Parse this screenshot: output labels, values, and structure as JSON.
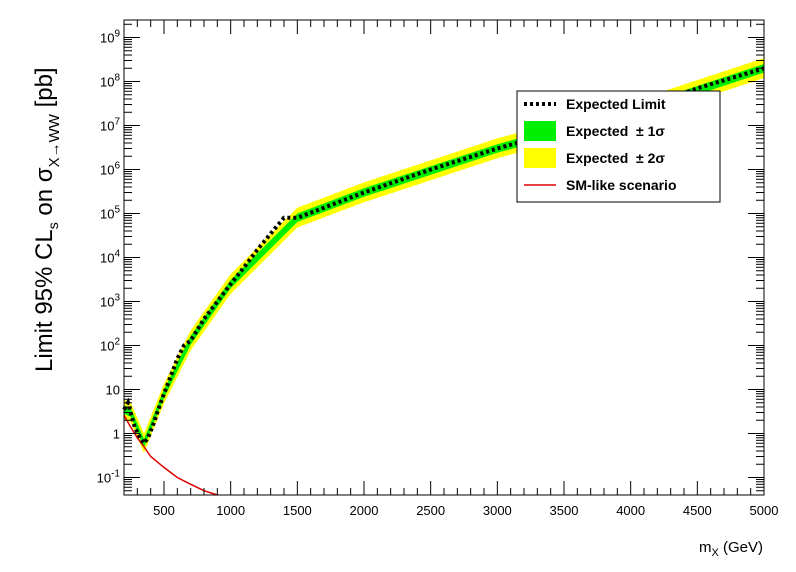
{
  "chart_data": {
    "type": "line",
    "ylabel": {
      "prefix": "Limit 95% CL",
      "prefix_sub": "s",
      "middle": " on σ",
      "sub": "X→WW",
      "suffix": " [pb]"
    },
    "xlabel": {
      "main": "m",
      "sub": "X",
      "suffix": " (GeV)"
    },
    "xlim": [
      200,
      5000
    ],
    "ylim": [
      0.04,
      2500000000
    ],
    "y_scale": "log",
    "grid": false,
    "legend_position": "top-right",
    "xtick_labels": [
      "500",
      "1000",
      "1500",
      "2000",
      "2500",
      "3000",
      "3500",
      "4000",
      "4500",
      "5000"
    ],
    "xtick_values": [
      500,
      1000,
      1500,
      2000,
      2500,
      3000,
      3500,
      4000,
      4500,
      5000
    ],
    "ytick_labels": [
      {
        "base": "10",
        "exp": "-1",
        "value": 0.1
      },
      {
        "base": "1",
        "exp": "",
        "value": 1
      },
      {
        "base": "10",
        "exp": "",
        "value": 10
      },
      {
        "base": "10",
        "exp": "2",
        "value": 100
      },
      {
        "base": "10",
        "exp": "3",
        "value": 1000
      },
      {
        "base": "10",
        "exp": "4",
        "value": 10000
      },
      {
        "base": "10",
        "exp": "5",
        "value": 100000
      },
      {
        "base": "10",
        "exp": "6",
        "value": 1000000
      },
      {
        "base": "10",
        "exp": "7",
        "value": 10000000
      },
      {
        "base": "10",
        "exp": "8",
        "value": 100000000
      },
      {
        "base": "10",
        "exp": "9",
        "value": 1000000000
      }
    ],
    "series": [
      {
        "name": "Expected Limit",
        "style": "dotted",
        "color": "#000000",
        "x": [
          200,
          230,
          250,
          280,
          320,
          350,
          380,
          420,
          450,
          500,
          550,
          600,
          650,
          700,
          800,
          900,
          1000,
          1100,
          1200,
          1300,
          1400,
          1500,
          2000,
          2500,
          3000,
          3500,
          4000,
          4500,
          5000
        ],
        "y": [
          3.5,
          5.0,
          3.0,
          1.4,
          0.8,
          0.6,
          0.8,
          1.6,
          3.0,
          8,
          20,
          50,
          100,
          130,
          400,
          1000,
          2500,
          6000,
          15000,
          35000,
          80000,
          80000,
          300000,
          1000000,
          3000000,
          8000000,
          20000000,
          70000000,
          200000000
        ]
      },
      {
        "name": "Expected  ± 1σ",
        "type": "band",
        "color": "#00ee00",
        "x": [
          200,
          250,
          350,
          500,
          700,
          1000,
          1500,
          2000,
          3000,
          4000,
          5000
        ],
        "low": [
          2.8,
          2.4,
          0.48,
          6.4,
          105,
          2000,
          64000,
          240000,
          2400000,
          16000000,
          160000000
        ],
        "high": [
          4.4,
          3.8,
          0.75,
          10,
          165,
          3100,
          100000,
          375000,
          3750000,
          25000000,
          250000000
        ]
      },
      {
        "name": "Expected  ± 2σ",
        "type": "band",
        "color": "#ffff00",
        "x": [
          200,
          250,
          350,
          500,
          700,
          1000,
          1500,
          2000,
          3000,
          4000,
          5000
        ],
        "low": [
          2.1,
          1.8,
          0.36,
          4.8,
          78,
          1500,
          48000,
          180000,
          1800000,
          12000000,
          120000000
        ],
        "high": [
          5.8,
          5.1,
          1.0,
          13.6,
          220,
          4200,
          135000,
          510000,
          5100000,
          34000000,
          340000000
        ]
      },
      {
        "name": "SM-like scenario",
        "color": "#dd0000",
        "x": [
          200,
          250,
          300,
          350,
          400,
          500,
          600,
          700,
          800,
          900
        ],
        "y": [
          2.6,
          1.4,
          0.8,
          0.5,
          0.3,
          0.17,
          0.1,
          0.07,
          0.05,
          0.04
        ]
      }
    ],
    "legend": [
      {
        "label": "Expected Limit",
        "symbol": "dotted-line"
      },
      {
        "label": "Expected  ± 1σ",
        "symbol": "green-box"
      },
      {
        "label": "Expected  ± 2σ",
        "symbol": "yellow-box"
      },
      {
        "label": "SM-like scenario",
        "symbol": "red-line"
      }
    ],
    "colors": {
      "band1": "#00ee00",
      "band2": "#ffff00",
      "sm_line": "#dd0000",
      "expected_line": "#000000"
    }
  }
}
